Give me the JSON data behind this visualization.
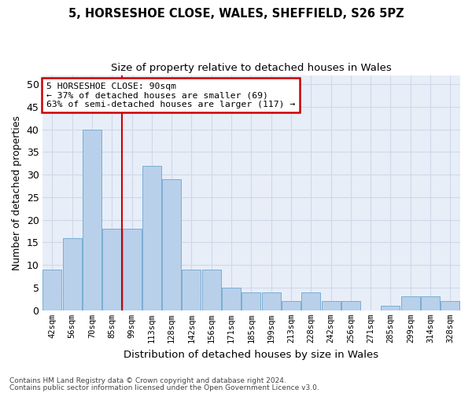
{
  "title1": "5, HORSESHOE CLOSE, WALES, SHEFFIELD, S26 5PZ",
  "title2": "Size of property relative to detached houses in Wales",
  "xlabel": "Distribution of detached houses by size in Wales",
  "ylabel": "Number of detached properties",
  "bar_values": [
    9,
    16,
    40,
    18,
    18,
    32,
    29,
    9,
    9,
    5,
    4,
    4,
    2,
    4,
    2,
    2,
    0,
    1,
    3,
    3,
    2
  ],
  "bar_labels": [
    "42sqm",
    "56sqm",
    "70sqm",
    "85sqm",
    "99sqm",
    "113sqm",
    "128sqm",
    "142sqm",
    "156sqm",
    "171sqm",
    "185sqm",
    "199sqm",
    "213sqm",
    "228sqm",
    "242sqm",
    "256sqm",
    "271sqm",
    "285sqm",
    "299sqm",
    "314sqm",
    "328sqm"
  ],
  "bar_color": "#b8d0ea",
  "bar_edge_color": "#7aadd4",
  "grid_color": "#d0d8e8",
  "annotation_box_color": "#cc0000",
  "property_line_color": "#cc0000",
  "property_line_x": 3.5,
  "annotation_text": "5 HORSESHOE CLOSE: 90sqm\n← 37% of detached houses are smaller (69)\n63% of semi-detached houses are larger (117) →",
  "footer1": "Contains HM Land Registry data © Crown copyright and database right 2024.",
  "footer2": "Contains public sector information licensed under the Open Government Licence v3.0.",
  "ylim": [
    0,
    52
  ],
  "yticks": [
    0,
    5,
    10,
    15,
    20,
    25,
    30,
    35,
    40,
    45,
    50
  ],
  "bg_color": "#e8eef8",
  "fig_width": 6.0,
  "fig_height": 5.0,
  "dpi": 100
}
